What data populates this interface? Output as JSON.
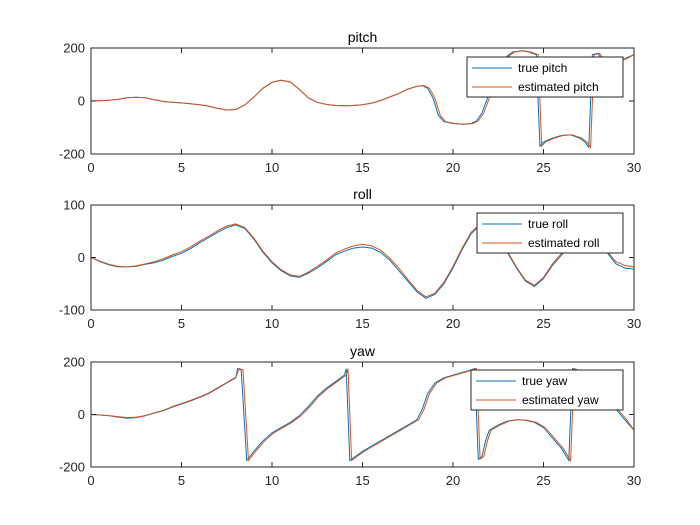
{
  "colors": {
    "true": "#0072BD",
    "estimated": "#D95319",
    "axes": "#262626"
  },
  "chart_data": [
    {
      "type": "line",
      "title": "pitch",
      "xlabel": "",
      "ylabel": "",
      "xlim": [
        0,
        30
      ],
      "ylim": [
        -200,
        200
      ],
      "xticks": [
        0,
        5,
        10,
        15,
        20,
        25,
        30
      ],
      "yticks": [
        -200,
        0,
        200
      ],
      "grid": false,
      "legend": "top-right",
      "series": [
        {
          "name": "true pitch",
          "x": [
            0,
            0.5,
            1,
            1.5,
            2,
            2.5,
            3,
            3.5,
            4,
            4.5,
            5,
            5.5,
            6,
            6.5,
            7,
            7.5,
            8,
            8.5,
            9,
            9.5,
            10,
            10.5,
            11,
            11.5,
            12,
            12.5,
            13,
            13.5,
            14,
            14.5,
            15,
            15.5,
            16,
            16.5,
            17,
            17.5,
            18,
            18.3,
            18.6,
            18.9,
            19.2,
            19.5,
            20,
            20.5,
            21,
            21.3,
            21.6,
            21.9,
            22.3,
            22.8,
            23.3,
            23.8,
            24.2,
            24.6,
            24.8,
            25,
            25.5,
            26,
            26.5,
            27,
            27.3,
            27.5,
            27.7,
            28,
            28.5,
            29,
            29.5,
            30
          ],
          "y": [
            0,
            1,
            3,
            6,
            12,
            14,
            12,
            5,
            -2,
            -5,
            -7,
            -10,
            -14,
            -20,
            -28,
            -34,
            -32,
            -15,
            15,
            48,
            70,
            78,
            72,
            45,
            12,
            -5,
            -13,
            -17,
            -18,
            -17,
            -14,
            -8,
            2,
            15,
            28,
            45,
            55,
            58,
            48,
            10,
            -55,
            -78,
            -85,
            -88,
            -85,
            -75,
            -45,
            10,
            100,
            160,
            185,
            190,
            185,
            175,
            -170,
            -155,
            -140,
            -130,
            -128,
            -140,
            -155,
            -175,
            175,
            180,
            130,
            150,
            160,
            175
          ]
        },
        {
          "name": "estimated pitch",
          "x": [
            0,
            0.5,
            1,
            1.5,
            2,
            2.5,
            3,
            3.5,
            4,
            4.5,
            5,
            5.5,
            6,
            6.5,
            7,
            7.5,
            8,
            8.5,
            9,
            9.5,
            10,
            10.5,
            11,
            11.5,
            12,
            12.5,
            13,
            13.5,
            14,
            14.5,
            15,
            15.5,
            16,
            16.5,
            17,
            17.5,
            18,
            18.4,
            18.7,
            19,
            19.3,
            19.6,
            20.1,
            20.6,
            21.1,
            21.4,
            21.7,
            22,
            22.4,
            22.9,
            23.4,
            23.9,
            24.3,
            24.7,
            24.9,
            25.1,
            25.6,
            26.1,
            26.6,
            27.1,
            27.4,
            27.6,
            27.8,
            28.1,
            28.6,
            29.1,
            29.6,
            30
          ],
          "y": [
            0,
            1,
            3,
            6,
            12,
            14,
            12,
            5,
            -2,
            -5,
            -7,
            -10,
            -14,
            -20,
            -28,
            -34,
            -32,
            -15,
            15,
            48,
            70,
            78,
            72,
            45,
            12,
            -5,
            -13,
            -17,
            -18,
            -17,
            -14,
            -8,
            2,
            15,
            28,
            45,
            55,
            58,
            48,
            10,
            -55,
            -78,
            -85,
            -88,
            -85,
            -75,
            -45,
            10,
            100,
            160,
            185,
            190,
            185,
            175,
            -170,
            -155,
            -140,
            -130,
            -128,
            -140,
            -155,
            -175,
            175,
            180,
            130,
            150,
            160,
            175
          ]
        }
      ]
    },
    {
      "type": "line",
      "title": "roll",
      "xlabel": "",
      "ylabel": "",
      "xlim": [
        0,
        30
      ],
      "ylim": [
        -100,
        100
      ],
      "xticks": [
        0,
        5,
        10,
        15,
        20,
        25,
        30
      ],
      "yticks": [
        -100,
        0,
        100
      ],
      "grid": false,
      "legend": "top-right",
      "series": [
        {
          "name": "true roll",
          "x": [
            0,
            0.5,
            1,
            1.5,
            2,
            2.5,
            3,
            3.5,
            4,
            4.5,
            5,
            5.5,
            6,
            6.5,
            7,
            7.5,
            8,
            8.5,
            9,
            9.5,
            10,
            10.5,
            11,
            11.5,
            12,
            12.5,
            13,
            13.5,
            14,
            14.5,
            15,
            15.5,
            16,
            16.5,
            17,
            17.5,
            18,
            18.5,
            19,
            19.5,
            20,
            20.5,
            21,
            21.5,
            22,
            22.5,
            23,
            23.5,
            24,
            24.5,
            25,
            25.5,
            26,
            26.5,
            27,
            27.5,
            28,
            28.5,
            29,
            29.5,
            30
          ],
          "y": [
            0,
            -8,
            -14,
            -18,
            -18,
            -17,
            -13,
            -10,
            -5,
            2,
            8,
            17,
            28,
            38,
            48,
            57,
            62,
            55,
            35,
            10,
            -10,
            -25,
            -35,
            -38,
            -30,
            -20,
            -8,
            5,
            12,
            18,
            20,
            18,
            10,
            -5,
            -25,
            -45,
            -65,
            -78,
            -70,
            -50,
            -20,
            15,
            45,
            62,
            60,
            40,
            10,
            -20,
            -45,
            -55,
            -40,
            -15,
            5,
            25,
            35,
            40,
            28,
            10,
            -12,
            -20,
            -22
          ]
        },
        {
          "name": "estimated roll",
          "x": [
            0,
            0.5,
            1,
            1.5,
            2,
            2.5,
            3,
            3.5,
            4,
            4.5,
            5,
            5.5,
            6,
            6.5,
            7,
            7.5,
            8,
            8.5,
            9,
            9.5,
            10,
            10.5,
            11,
            11.5,
            12,
            12.5,
            13,
            13.5,
            14,
            14.5,
            15,
            15.5,
            16,
            16.5,
            17,
            17.5,
            18,
            18.5,
            19,
            19.5,
            20,
            20.5,
            21,
            21.5,
            22,
            22.5,
            23,
            23.5,
            24,
            24.5,
            25,
            25.5,
            26,
            26.5,
            27,
            27.5,
            28,
            28.5,
            29,
            29.5,
            30
          ],
          "y": [
            0,
            -7,
            -13,
            -17,
            -18,
            -16,
            -12,
            -8,
            -2,
            5,
            11,
            20,
            31,
            41,
            51,
            60,
            64,
            57,
            37,
            12,
            -8,
            -23,
            -33,
            -36,
            -28,
            -17,
            -5,
            8,
            16,
            22,
            25,
            22,
            14,
            -1,
            -20,
            -42,
            -62,
            -75,
            -68,
            -47,
            -17,
            18,
            48,
            64,
            62,
            42,
            12,
            -18,
            -43,
            -53,
            -38,
            -12,
            8,
            28,
            38,
            42,
            30,
            12,
            -8,
            -15,
            -18
          ]
        }
      ]
    },
    {
      "type": "line",
      "title": "yaw",
      "xlabel": "",
      "ylabel": "",
      "xlim": [
        0,
        30
      ],
      "ylim": [
        -200,
        200
      ],
      "xticks": [
        0,
        5,
        10,
        15,
        20,
        25,
        30
      ],
      "yticks": [
        -200,
        0,
        200
      ],
      "grid": false,
      "legend": "top-right",
      "series": [
        {
          "name": "true yaw",
          "x": [
            0,
            0.5,
            1,
            1.5,
            2,
            2.5,
            3,
            3.5,
            4,
            4.5,
            5,
            5.5,
            6,
            6.5,
            7,
            7.5,
            8,
            8.1,
            8.3,
            8.6,
            9,
            9.5,
            10,
            10.5,
            11,
            11.5,
            12,
            12.5,
            13,
            13.5,
            14,
            14.1,
            14.3,
            14.6,
            15,
            15.5,
            16,
            16.5,
            17,
            17.5,
            18,
            18.3,
            18.6,
            19,
            19.5,
            20,
            20.5,
            21,
            21.2,
            21.4,
            21.6,
            21.8,
            22,
            22.5,
            23,
            23.5,
            24,
            24.5,
            25,
            25.5,
            26,
            26.4,
            26.6,
            26.8,
            27,
            27.5,
            28,
            28.5,
            29,
            29.5,
            30
          ],
          "y": [
            0,
            -2,
            -5,
            -10,
            -14,
            -12,
            -5,
            5,
            15,
            28,
            40,
            52,
            65,
            80,
            100,
            120,
            140,
            175,
            170,
            -175,
            -140,
            -100,
            -70,
            -50,
            -30,
            -5,
            30,
            70,
            100,
            125,
            150,
            175,
            -175,
            -160,
            -140,
            -120,
            -100,
            -80,
            -60,
            -40,
            -20,
            20,
            80,
            120,
            140,
            150,
            160,
            170,
            175,
            -170,
            -160,
            -100,
            -60,
            -40,
            -25,
            -20,
            -22,
            -30,
            -50,
            -90,
            -130,
            -175,
            175,
            170,
            160,
            120,
            80,
            50,
            20,
            -20,
            -60
          ]
        },
        {
          "name": "estimated yaw",
          "x": [
            0,
            0.5,
            1,
            1.5,
            2,
            2.5,
            3,
            3.5,
            4,
            4.5,
            5,
            5.5,
            6,
            6.5,
            7,
            7.5,
            8,
            8.2,
            8.4,
            8.7,
            9.1,
            9.6,
            10.1,
            10.6,
            11.1,
            11.6,
            12.1,
            12.6,
            13.1,
            13.6,
            14.1,
            14.2,
            14.4,
            14.7,
            15.1,
            15.6,
            16.1,
            16.6,
            17.1,
            17.6,
            18.1,
            18.4,
            18.7,
            19.1,
            19.6,
            20.1,
            20.6,
            21.1,
            21.3,
            21.5,
            21.7,
            21.9,
            22.1,
            22.6,
            23.1,
            23.6,
            24.1,
            24.6,
            25.1,
            25.6,
            26.1,
            26.5,
            26.7,
            26.9,
            27.1,
            27.6,
            28.1,
            28.6,
            29.1,
            29.6,
            30
          ],
          "y": [
            0,
            -2,
            -4,
            -8,
            -12,
            -10,
            -4,
            6,
            16,
            30,
            42,
            54,
            67,
            82,
            102,
            122,
            142,
            175,
            170,
            -175,
            -140,
            -100,
            -70,
            -50,
            -30,
            -5,
            30,
            70,
            100,
            125,
            150,
            175,
            -175,
            -160,
            -140,
            -120,
            -100,
            -80,
            -60,
            -40,
            -20,
            20,
            80,
            120,
            140,
            150,
            160,
            170,
            175,
            -170,
            -160,
            -100,
            -60,
            -40,
            -25,
            -20,
            -22,
            -30,
            -50,
            -90,
            -130,
            -175,
            175,
            170,
            160,
            120,
            80,
            50,
            20,
            -20,
            -60
          ]
        }
      ]
    }
  ]
}
